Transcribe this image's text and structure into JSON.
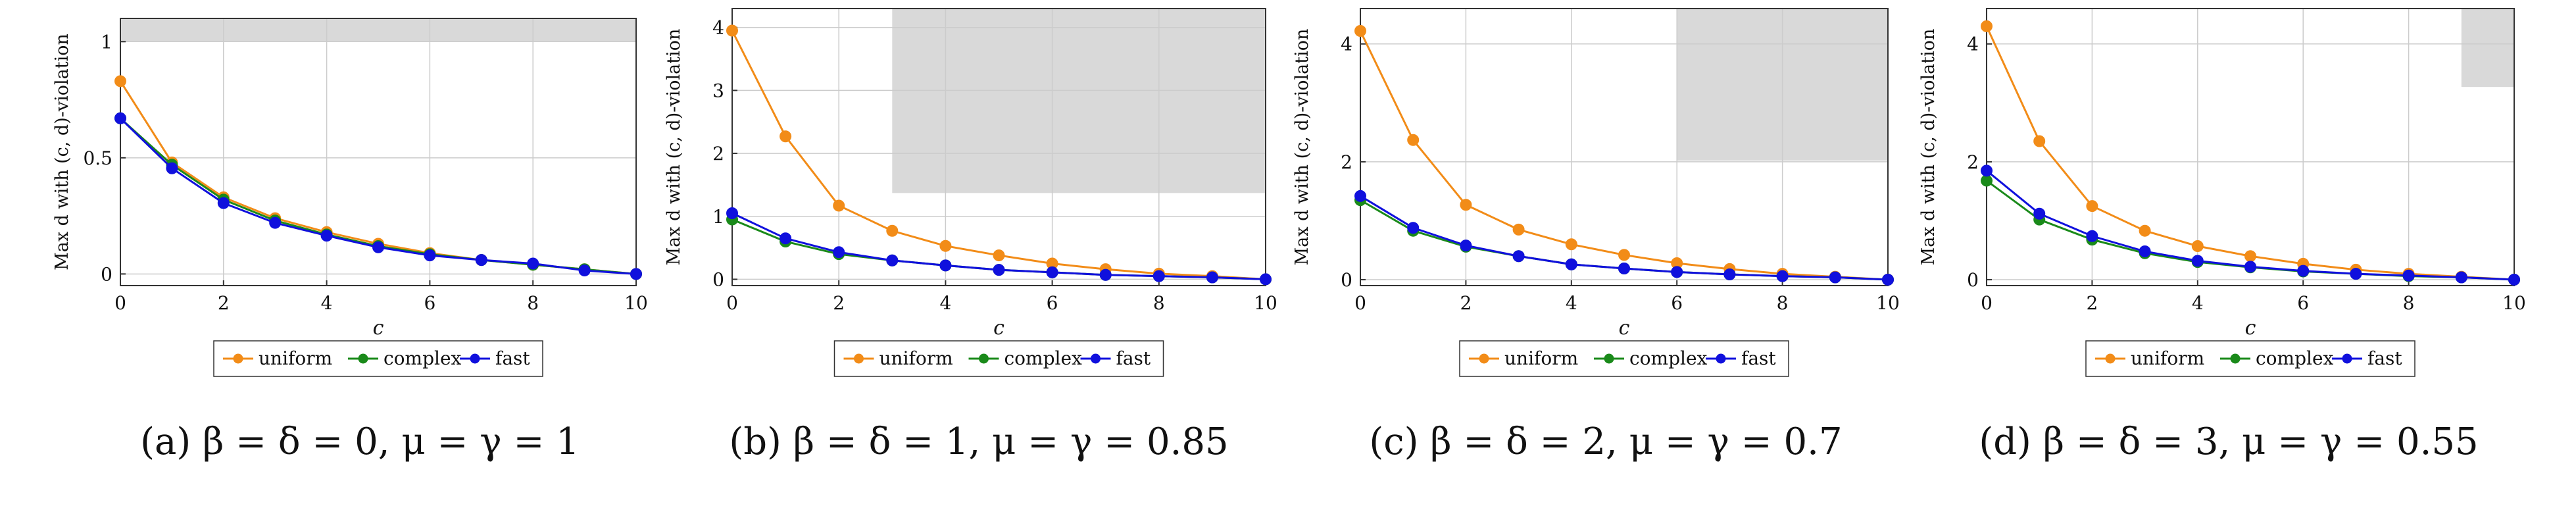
{
  "colors": {
    "uniform": "#f28c18",
    "complex": "#1a8a1a",
    "fast": "#1010dd",
    "infeasible_region": "#d9d9d9",
    "grid": "#cccccc",
    "axis": "#333333"
  },
  "chart_data": [
    {
      "type": "line",
      "caption": "(a) β = δ = 0, μ = γ = 1",
      "xlabel": "c",
      "ylabel": "Max d with (c, d)-violation",
      "xlim": [
        0,
        10
      ],
      "ylim": [
        -0.05,
        1.1
      ],
      "xticks": [
        0,
        2,
        4,
        6,
        8,
        10
      ],
      "yticks": [
        0,
        0.5,
        1
      ],
      "ytick_labels": [
        "0",
        "0.5",
        "1"
      ],
      "grid": true,
      "shaded_region": {
        "x": [
          0,
          10
        ],
        "y": [
          1,
          1.1
        ]
      },
      "x": [
        0,
        1,
        2,
        3,
        4,
        5,
        6,
        7,
        8,
        9,
        10
      ],
      "series": [
        {
          "name": "uniform",
          "values": [
            0.83,
            0.48,
            0.33,
            0.24,
            0.18,
            0.13,
            0.09,
            0.06,
            0.04,
            0.02,
            0.0
          ]
        },
        {
          "name": "complex",
          "values": [
            0.67,
            0.47,
            0.32,
            0.23,
            0.17,
            0.12,
            0.085,
            0.06,
            0.04,
            0.02,
            0.0
          ]
        },
        {
          "name": "fast",
          "values": [
            0.67,
            0.455,
            0.305,
            0.22,
            0.165,
            0.115,
            0.08,
            0.06,
            0.045,
            0.015,
            0.0
          ]
        }
      ],
      "legend": {
        "placement": "bottom",
        "entries": [
          "uniform",
          "complex",
          "fast"
        ]
      }
    },
    {
      "type": "line",
      "caption": "(b) β = δ = 1, μ = γ = 0.85",
      "xlabel": "c",
      "ylabel": "Max d with (c, d)-violation",
      "xlim": [
        0,
        10
      ],
      "ylim": [
        -0.1,
        4.3
      ],
      "xticks": [
        0,
        2,
        4,
        6,
        8,
        10
      ],
      "yticks": [
        0,
        1,
        2,
        3,
        4
      ],
      "ytick_labels": [
        "0",
        "1",
        "2",
        "3",
        "4"
      ],
      "grid": true,
      "shaded_region": {
        "x": [
          3,
          10
        ],
        "y": [
          1.37,
          4.3
        ]
      },
      "x": [
        0,
        1,
        2,
        3,
        4,
        5,
        6,
        7,
        8,
        9,
        10
      ],
      "series": [
        {
          "name": "uniform",
          "values": [
            3.95,
            2.27,
            1.17,
            0.77,
            0.53,
            0.38,
            0.25,
            0.16,
            0.09,
            0.05,
            0.0
          ]
        },
        {
          "name": "complex",
          "values": [
            0.95,
            0.6,
            0.4,
            0.3,
            0.22,
            0.15,
            0.11,
            0.07,
            0.05,
            0.03,
            0.0
          ]
        },
        {
          "name": "fast",
          "values": [
            1.05,
            0.65,
            0.43,
            0.3,
            0.22,
            0.15,
            0.11,
            0.07,
            0.05,
            0.03,
            0.0
          ]
        }
      ],
      "legend": {
        "placement": "bottom",
        "entries": [
          "uniform",
          "complex",
          "fast"
        ]
      }
    },
    {
      "type": "line",
      "caption": "(c) β = δ = 2, μ = γ = 0.7",
      "xlabel": "c",
      "ylabel": "Max d with (c, d)-violation",
      "xlim": [
        0,
        10
      ],
      "ylim": [
        -0.1,
        4.6
      ],
      "xticks": [
        0,
        2,
        4,
        6,
        8,
        10
      ],
      "yticks": [
        0,
        2,
        4
      ],
      "ytick_labels": [
        "0",
        "2",
        "4"
      ],
      "grid": true,
      "shaded_region": {
        "x": [
          6,
          10
        ],
        "y": [
          2.02,
          4.6
        ]
      },
      "x": [
        0,
        1,
        2,
        3,
        4,
        5,
        6,
        7,
        8,
        9,
        10
      ],
      "series": [
        {
          "name": "uniform",
          "values": [
            4.22,
            2.37,
            1.27,
            0.85,
            0.6,
            0.42,
            0.28,
            0.18,
            0.1,
            0.05,
            0.0
          ]
        },
        {
          "name": "complex",
          "values": [
            1.35,
            0.83,
            0.56,
            0.4,
            0.26,
            0.19,
            0.13,
            0.09,
            0.06,
            0.04,
            0.0
          ]
        },
        {
          "name": "fast",
          "values": [
            1.42,
            0.88,
            0.58,
            0.4,
            0.26,
            0.19,
            0.13,
            0.09,
            0.06,
            0.04,
            0.0
          ]
        }
      ],
      "legend": {
        "placement": "bottom",
        "entries": [
          "uniform",
          "complex",
          "fast"
        ]
      }
    },
    {
      "type": "line",
      "caption": "(d) β = δ = 3, μ = γ = 0.55",
      "xlabel": "c",
      "ylabel": "Max d with (c, d)-violation",
      "xlim": [
        0,
        10
      ],
      "ylim": [
        -0.1,
        4.6
      ],
      "xticks": [
        0,
        2,
        4,
        6,
        8,
        10
      ],
      "yticks": [
        0,
        2,
        4
      ],
      "ytick_labels": [
        "0",
        "2",
        "4"
      ],
      "grid": true,
      "shaded_region": {
        "x": [
          9,
          10
        ],
        "y": [
          3.27,
          4.6
        ]
      },
      "x": [
        0,
        1,
        2,
        3,
        4,
        5,
        6,
        7,
        8,
        9,
        10
      ],
      "series": [
        {
          "name": "uniform",
          "values": [
            4.3,
            2.35,
            1.25,
            0.83,
            0.57,
            0.4,
            0.27,
            0.17,
            0.1,
            0.05,
            0.0
          ]
        },
        {
          "name": "complex",
          "values": [
            1.68,
            1.02,
            0.68,
            0.45,
            0.3,
            0.21,
            0.14,
            0.1,
            0.06,
            0.04,
            0.0
          ]
        },
        {
          "name": "fast",
          "values": [
            1.85,
            1.12,
            0.74,
            0.48,
            0.32,
            0.22,
            0.15,
            0.1,
            0.07,
            0.04,
            0.0
          ]
        }
      ],
      "legend": {
        "placement": "bottom",
        "entries": [
          "uniform",
          "complex",
          "fast"
        ]
      }
    }
  ]
}
